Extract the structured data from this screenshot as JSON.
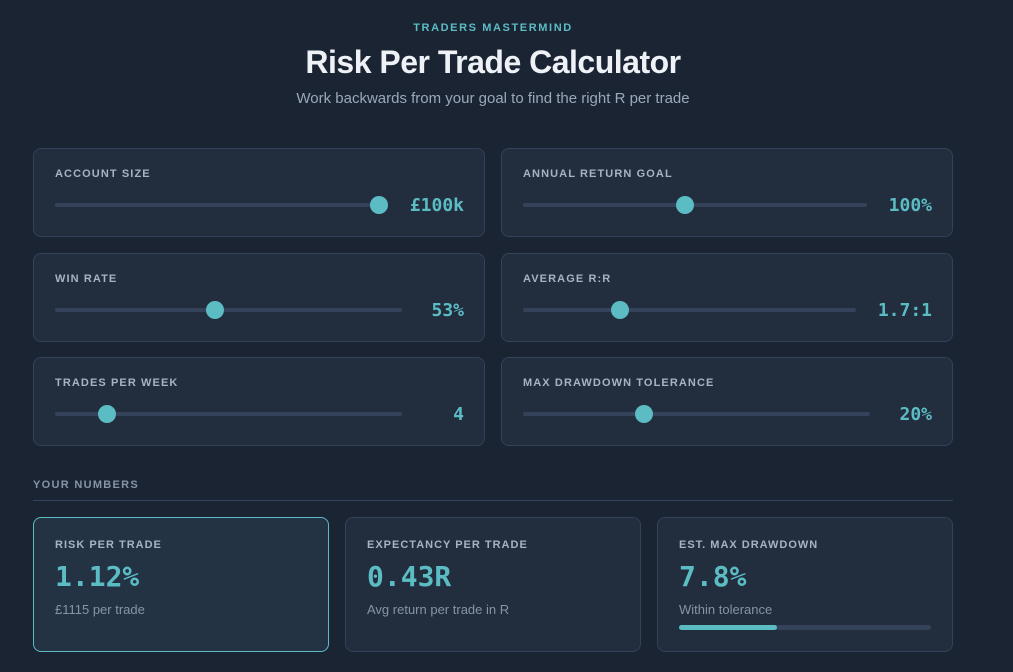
{
  "header": {
    "brand": "TRADERS MASTERMIND",
    "title": "Risk Per Trade Calculator",
    "subtitle": "Work backwards from your goal to find the right R per trade"
  },
  "sliders": [
    {
      "label": "ACCOUNT SIZE",
      "value": "£100k",
      "position": 1.0
    },
    {
      "label": "ANNUAL RETURN GOAL",
      "value": "100%",
      "position": 0.47
    },
    {
      "label": "WIN RATE",
      "value": "53%",
      "position": 0.46
    },
    {
      "label": "AVERAGE R:R",
      "value": "1.7:1",
      "position": 0.28
    },
    {
      "label": "TRADES PER WEEK",
      "value": "4",
      "position": 0.13
    },
    {
      "label": "MAX DRAWDOWN TOLERANCE",
      "value": "20%",
      "position": 0.34
    }
  ],
  "results_section": {
    "label": "YOUR NUMBERS"
  },
  "results": [
    {
      "label": "RISK PER TRADE",
      "value": "1.12%",
      "sub": "£1115 per trade"
    },
    {
      "label": "EXPECTANCY PER TRADE",
      "value": "0.43R",
      "sub": "Avg return per trade in R"
    },
    {
      "label": "EST. MAX DRAWDOWN",
      "value": "7.8%",
      "sub": "Within tolerance",
      "bar_fraction": 0.39
    }
  ],
  "colors": {
    "accent": "#5bbcc4",
    "background": "#1b2433",
    "card": "#222d3d",
    "card_border": "#33415a"
  }
}
